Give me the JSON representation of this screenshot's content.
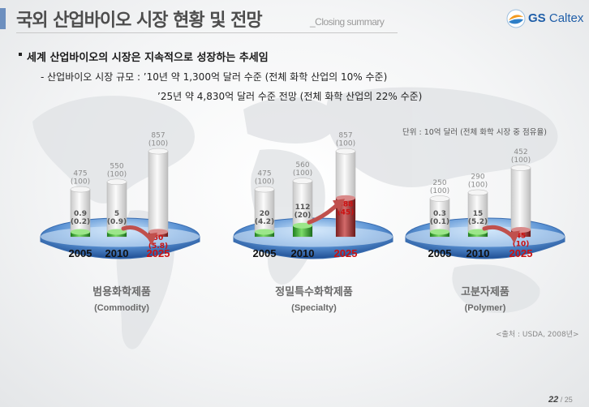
{
  "header": {
    "title": "국외 산업바이오 시장 현황 및 전망",
    "subtitle": "_Closing summary",
    "logo_mark": "GS",
    "logo_name": "Caltex"
  },
  "summary": {
    "bullet": "세계 산업바이오의 시장은 지속적으로 성장하는 추세임",
    "line1": "- 산업바이오 시장 규모 : ’10년 약 1,300억 달러 수준 (전체 화학 산업의 10% 수준)",
    "line2": "’25년 약 4,830억 달러 수준 전망 (전체 화학 산업의 22% 수준)"
  },
  "unit_note": "단위 : 10억 달러 (전체 화학 시장 중 점유율)",
  "colors": {
    "bio_bar": "#3aa63a",
    "bio_bar_2025": "#b33a3a",
    "label_2025": "#cc1111",
    "arrow": "#c0504d",
    "platform": "#6fa0d8"
  },
  "chart_data": [
    {
      "type": "bar",
      "title": "범용화학제품",
      "subtitle": "(Commodity)",
      "categories": [
        "2005",
        "2010",
        "2025"
      ],
      "series": [
        {
          "values": [
            475,
            550,
            857
          ],
          "labels": [
            "475\n(100)",
            "550\n(100)",
            "857\n(100)"
          ]
        },
        {
          "values": [
            0.9,
            5,
            50
          ],
          "labels": [
            "0.9\n(0.2)",
            "5\n(0.9)",
            "50\n(5.8)"
          ]
        }
      ]
    },
    {
      "type": "bar",
      "title": "정밀특수화학제품",
      "subtitle": "(Specialty)",
      "categories": [
        "2005",
        "2010",
        "2025"
      ],
      "series": [
        {
          "values": [
            475,
            560,
            857
          ],
          "labels": [
            "475\n(100)",
            "560\n(100)",
            "857\n(100)"
          ]
        },
        {
          "values": [
            20,
            112,
            388
          ],
          "labels": [
            "20\n(4.2)",
            "112\n(20)",
            "388\n(45)"
          ]
        }
      ]
    },
    {
      "type": "bar",
      "title": "고분자제품",
      "subtitle": "(Polymer)",
      "categories": [
        "2005",
        "2010",
        "2025"
      ],
      "series": [
        {
          "values": [
            250,
            290,
            452
          ],
          "labels": [
            "250\n(100)",
            "290\n(100)",
            "452\n(100)"
          ]
        },
        {
          "values": [
            0.3,
            15,
            45
          ],
          "labels": [
            "0.3\n(0.1)",
            "15\n(5.2)",
            "45\n(10)"
          ]
        }
      ]
    }
  ],
  "source": "<출처 : USDA, 2008년>",
  "page": {
    "current": "22",
    "total": "/ 25"
  }
}
